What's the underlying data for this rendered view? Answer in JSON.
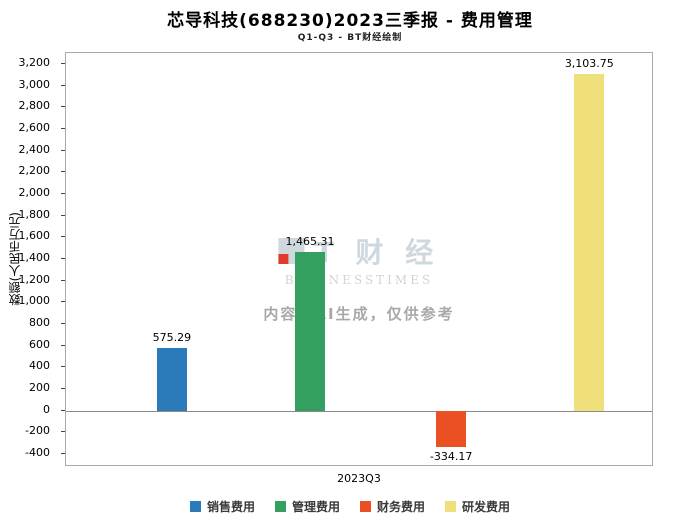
{
  "title": "芯导科技(688230)2023三季报 - 费用管理",
  "subtitle": "Q1-Q3 - BT财经绘制",
  "watermark": {
    "logo": "T 财 经",
    "line2": "BUSINESSTIMES",
    "note": "内容由AI生成，仅供参考"
  },
  "chart_data": {
    "type": "bar",
    "title": "芯导科技(688230)2023三季报 - 费用管理",
    "subtitle": "Q1-Q3 - BT财经绘制",
    "categories": [
      "2023Q3"
    ],
    "series": [
      {
        "name": "销售费用",
        "color": "#2b7bba",
        "values": [
          575.29
        ]
      },
      {
        "name": "管理费用",
        "color": "#33a05f",
        "values": [
          1465.31
        ]
      },
      {
        "name": "财务费用",
        "color": "#eb4f24",
        "values": [
          -334.17
        ]
      },
      {
        "name": "研发费用",
        "color": "#efe07b",
        "values": [
          3103.75
        ]
      }
    ],
    "value_labels": [
      "575.29",
      "1,465.31",
      "-334.17",
      "3,103.75"
    ],
    "ylabel": "数额(人民币万元)",
    "xlabel": "",
    "ylim": [
      -400,
      3200
    ],
    "ytick_step": 200,
    "grid": false,
    "legend_position": "bottom"
  }
}
